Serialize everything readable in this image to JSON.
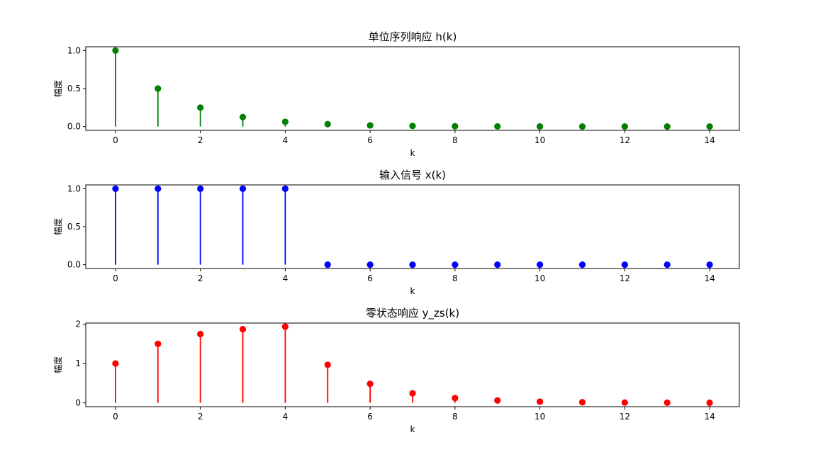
{
  "chart_data": [
    {
      "type": "stem",
      "title": "单位序列响应 h(k)",
      "xlabel": "k",
      "ylabel": "幅度",
      "color": "#008000",
      "xlim": [
        -0.7,
        14.7
      ],
      "ylim": [
        -0.05,
        1.05
      ],
      "xticks": [
        0,
        2,
        4,
        6,
        8,
        10,
        12,
        14
      ],
      "yticks": [
        0.0,
        0.5,
        1.0
      ],
      "ytick_labels": [
        "0.0",
        "0.5",
        "1.0"
      ],
      "x": [
        0,
        1,
        2,
        3,
        4,
        5,
        6,
        7,
        8,
        9,
        10,
        11,
        12,
        13,
        14
      ],
      "y": [
        1.0,
        0.5,
        0.25,
        0.125,
        0.0625,
        0.03125,
        0.015625,
        0.0078125,
        0.00390625,
        0.001953125,
        0.0009765625,
        0.00048828125,
        0.000244140625,
        0.0001220703125,
        6.103515625e-05
      ]
    },
    {
      "type": "stem",
      "title": "输入信号 x(k)",
      "xlabel": "k",
      "ylabel": "幅度",
      "color": "#0000ff",
      "xlim": [
        -0.7,
        14.7
      ],
      "ylim": [
        -0.05,
        1.05
      ],
      "xticks": [
        0,
        2,
        4,
        6,
        8,
        10,
        12,
        14
      ],
      "yticks": [
        0.0,
        0.5,
        1.0
      ],
      "ytick_labels": [
        "0.0",
        "0.5",
        "1.0"
      ],
      "x": [
        0,
        1,
        2,
        3,
        4,
        5,
        6,
        7,
        8,
        9,
        10,
        11,
        12,
        13,
        14
      ],
      "y": [
        1,
        1,
        1,
        1,
        1,
        0,
        0,
        0,
        0,
        0,
        0,
        0,
        0,
        0,
        0
      ]
    },
    {
      "type": "stem",
      "title": "零状态响应 y_zs(k)",
      "xlabel": "k",
      "ylabel": "幅度",
      "color": "#ff0000",
      "xlim": [
        -0.7,
        14.7
      ],
      "ylim": [
        -0.097,
        2.03
      ],
      "xticks": [
        0,
        2,
        4,
        6,
        8,
        10,
        12,
        14
      ],
      "yticks": [
        0,
        1,
        2
      ],
      "ytick_labels": [
        "0",
        "1",
        "2"
      ],
      "x": [
        0,
        1,
        2,
        3,
        4,
        5,
        6,
        7,
        8,
        9,
        10,
        11,
        12,
        13,
        14
      ],
      "y": [
        1.0,
        1.5,
        1.75,
        1.875,
        1.9375,
        0.96875,
        0.484375,
        0.2421875,
        0.12109375,
        0.060546875,
        0.0302734375,
        0.01513671875,
        0.007568359375,
        0.0037841796875,
        0.00189208984375
      ]
    }
  ]
}
